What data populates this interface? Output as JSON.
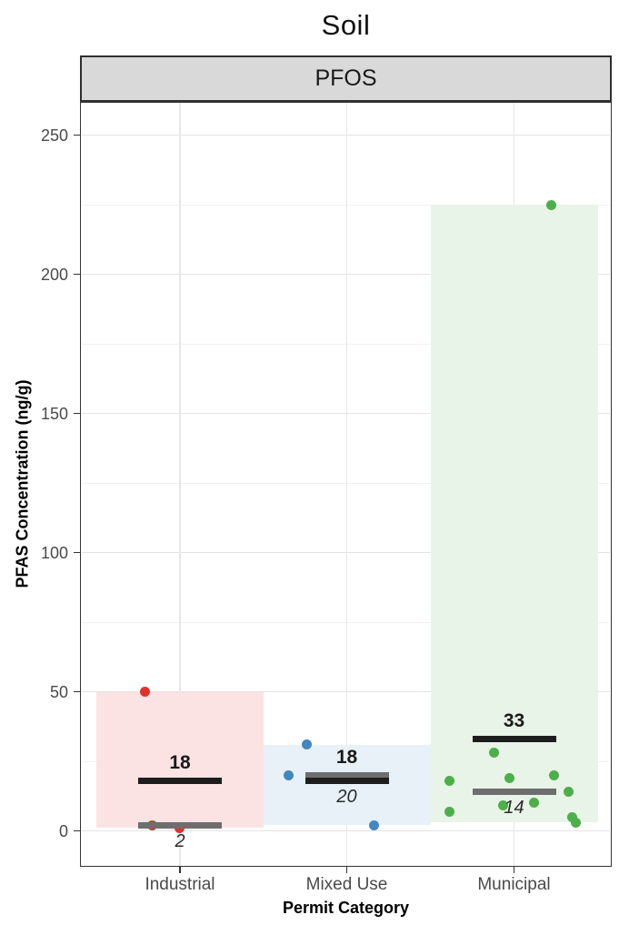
{
  "title": "Soil",
  "facet_label": "PFOS",
  "x_axis": {
    "label": "Permit Category",
    "categories": [
      "Industrial",
      "Mixed Use",
      "Municipal"
    ]
  },
  "y_axis": {
    "label": "PFAS Concentration (ng/g)",
    "ticks": [
      0,
      50,
      100,
      150,
      200,
      250
    ],
    "minor_ticks": [
      25,
      75,
      125,
      175,
      225
    ],
    "range": [
      0,
      262
    ]
  },
  "chart_data": {
    "type": "scatter",
    "title": "Soil",
    "facet": "PFOS",
    "xlabel": "Permit Category",
    "ylabel": "PFAS Concentration (ng/g)",
    "ylim": [
      0,
      262
    ],
    "grid": true,
    "legend": false,
    "categories": [
      "Industrial",
      "Mixed Use",
      "Municipal"
    ],
    "groups": [
      {
        "category": "Industrial",
        "point_color": "#e2312b",
        "band_fill": "#fbe3e4",
        "mean": 18,
        "mean_label": "18",
        "median": 2,
        "median_label": "2",
        "band_range": [
          1,
          50
        ],
        "points": [
          {
            "v": 50,
            "dx": -39
          },
          {
            "v": 2,
            "dx": -31
          },
          {
            "v": 1,
            "dx": -1
          }
        ]
      },
      {
        "category": "Mixed Use",
        "point_color": "#4187c0",
        "band_fill": "#e8f1f7",
        "mean": 18,
        "mean_label": "18",
        "median": 20,
        "median_label": "20",
        "band_range": [
          2,
          31
        ],
        "points": [
          {
            "v": 31,
            "dx": -44
          },
          {
            "v": 20,
            "dx": -64
          },
          {
            "v": 2,
            "dx": 30
          }
        ]
      },
      {
        "category": "Municipal",
        "point_color": "#4daf4a",
        "band_fill": "#e9f4e8",
        "mean": 33,
        "mean_label": "33",
        "median": 14,
        "median_label": "14",
        "band_range": [
          3,
          225
        ],
        "points": [
          {
            "v": 225,
            "dx": 41
          },
          {
            "v": 28,
            "dx": -22
          },
          {
            "v": 20,
            "dx": 44
          },
          {
            "v": 19,
            "dx": -5
          },
          {
            "v": 18,
            "dx": -71
          },
          {
            "v": 14,
            "dx": 60
          },
          {
            "v": 10,
            "dx": 22
          },
          {
            "v": 9,
            "dx": -12
          },
          {
            "v": 7,
            "dx": -71
          },
          {
            "v": 5,
            "dx": 64
          },
          {
            "v": 3,
            "dx": 68
          }
        ]
      }
    ],
    "stat_line_colors": {
      "mean": "#1d1d1d",
      "median": "#6e6e6e"
    }
  }
}
